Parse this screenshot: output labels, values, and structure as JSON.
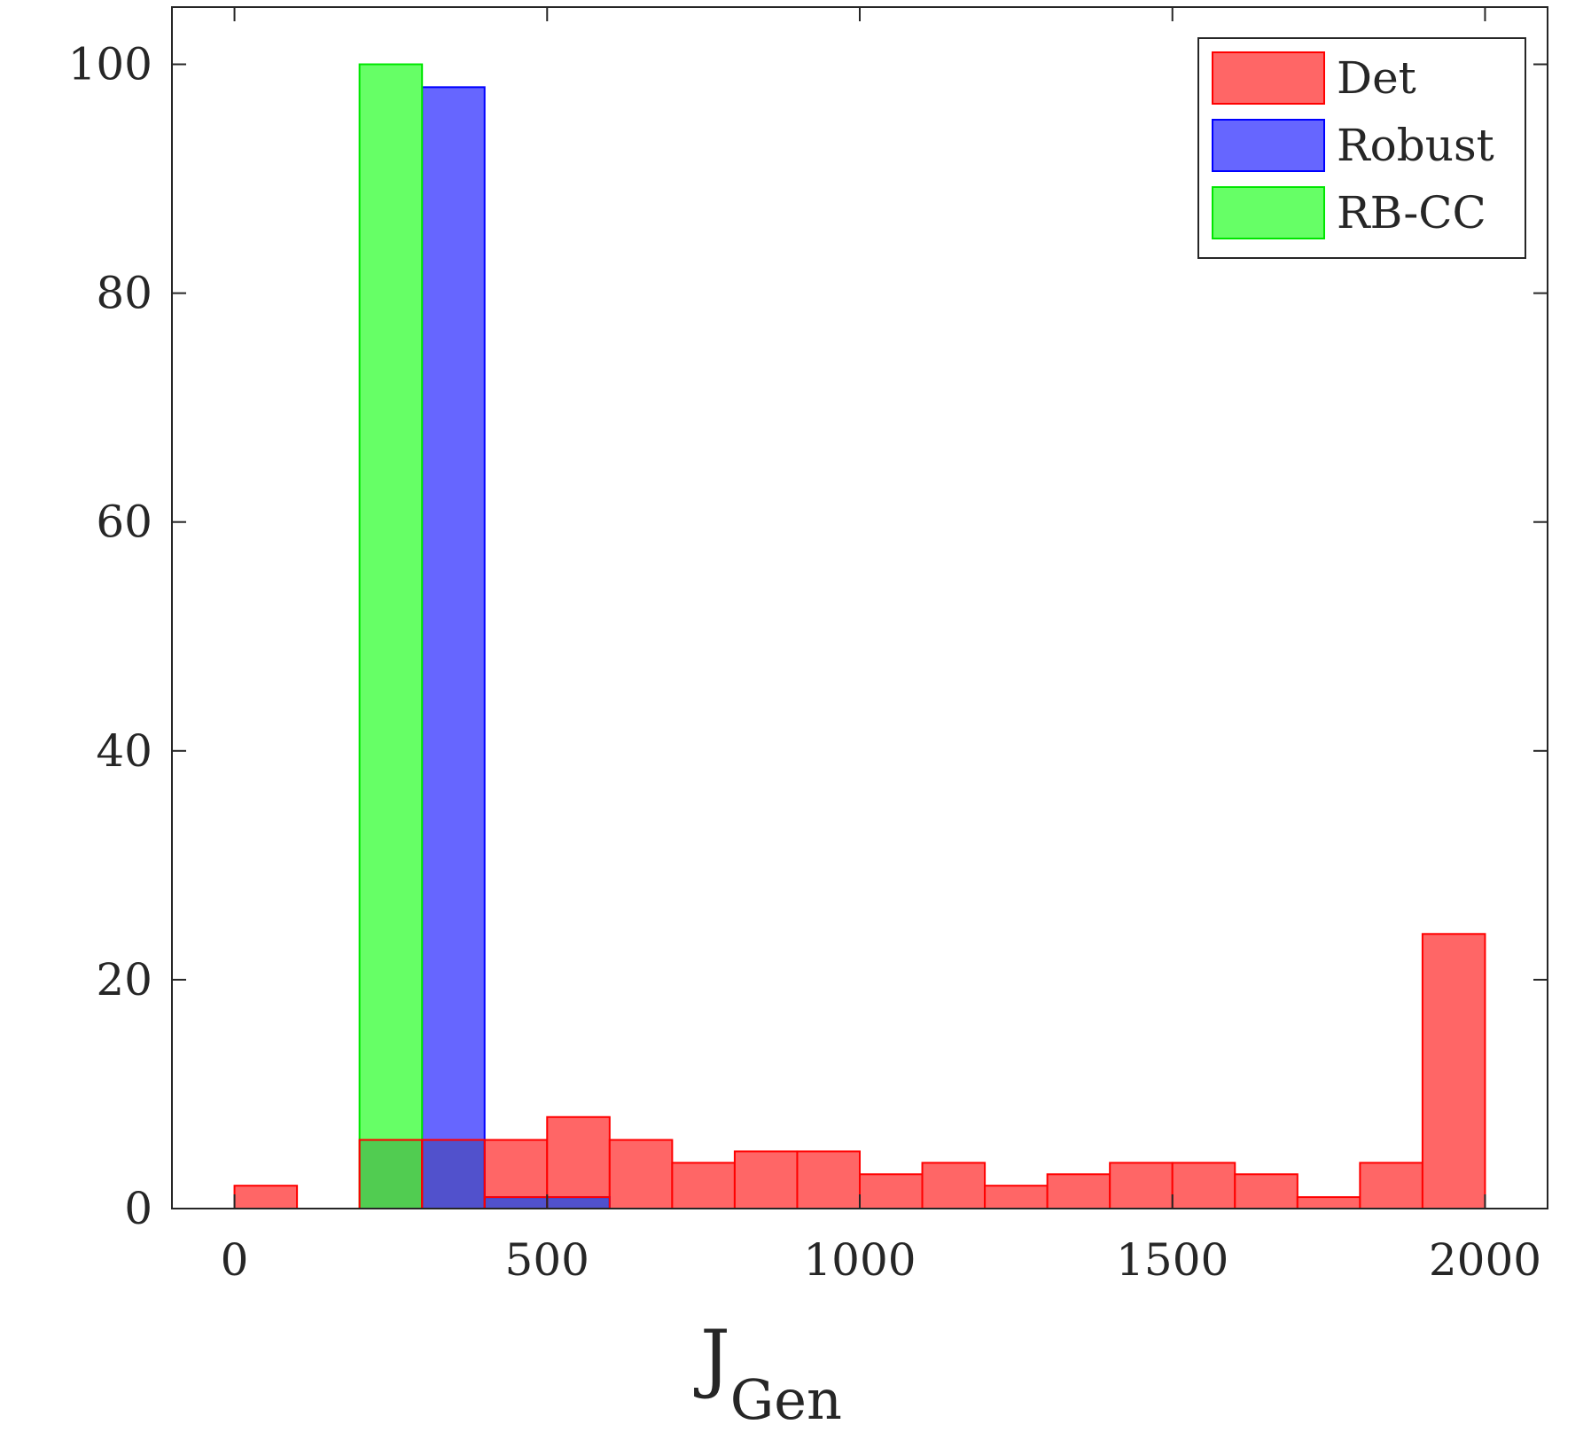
{
  "chart_data": {
    "type": "bar",
    "subtype": "overlapping-histogram",
    "bin_width": 100,
    "xlim": [
      -100,
      2100
    ],
    "ylim": [
      0,
      105
    ],
    "xticks": [
      0,
      500,
      1000,
      1500,
      2000
    ],
    "yticks": [
      0,
      20,
      40,
      60,
      80,
      100
    ],
    "xlabel": {
      "main": "J",
      "sub": "Gen"
    },
    "ylabel": "",
    "title": "",
    "grid": false,
    "legend_position": "top-right",
    "series": [
      {
        "name": "Det",
        "color": "#ff6666",
        "edge": "#ff0000",
        "bin_starts": [
          0,
          200,
          300,
          400,
          500,
          600,
          700,
          800,
          900,
          1000,
          1100,
          1200,
          1300,
          1400,
          1500,
          1600,
          1700,
          1800,
          1900
        ],
        "values": [
          2,
          6,
          6,
          6,
          8,
          6,
          4,
          5,
          5,
          3,
          4,
          2,
          3,
          4,
          4,
          3,
          1,
          4,
          24
        ]
      },
      {
        "name": "Robust",
        "color": "#6666ff",
        "edge": "#0000ff",
        "bin_starts": [
          300,
          400,
          500
        ],
        "values": [
          98,
          1,
          1
        ]
      },
      {
        "name": "RB-CC",
        "color": "#66ff66",
        "edge": "#00e600",
        "bin_starts": [
          200
        ],
        "values": [
          100
        ]
      }
    ]
  }
}
